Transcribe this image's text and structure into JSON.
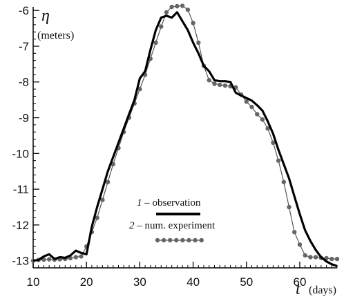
{
  "chart_data": {
    "type": "line",
    "title": "",
    "ylabel": "η",
    "ylabel_unit": "(meters)",
    "xlabel": "t",
    "xlabel_unit": "(days)",
    "xlim": [
      10,
      67
    ],
    "ylim": [
      -13.2,
      -5.9
    ],
    "x_ticks": [
      10,
      20,
      30,
      40,
      50,
      60
    ],
    "y_ticks": [
      -6,
      -7,
      -8,
      -9,
      -10,
      -11,
      -12,
      -13
    ],
    "x_tick_labels": [
      "10",
      "20",
      "30",
      "40",
      "50",
      "60"
    ],
    "y_tick_labels": [
      "-6",
      "-7",
      "-8",
      "-9",
      "-10",
      "-11",
      "-12",
      "-13"
    ],
    "legend_position": "center-bottom",
    "series": [
      {
        "name": "observation",
        "number": "1",
        "style": "thick-line",
        "color": "#000000",
        "x": [
          10,
          11,
          12,
          13,
          14,
          15,
          16,
          17,
          18,
          19,
          20,
          21,
          22,
          23,
          24,
          25,
          26,
          27,
          28,
          29,
          30,
          31,
          32,
          33,
          34,
          35,
          36,
          37,
          38,
          39,
          40,
          41,
          42,
          43,
          44,
          45,
          46,
          47,
          48,
          49,
          50,
          51,
          52,
          53,
          54,
          55,
          56,
          57,
          58,
          59,
          60,
          61,
          62,
          63,
          64,
          65,
          66,
          67
        ],
        "values": [
          -13.0,
          -12.98,
          -12.88,
          -12.82,
          -12.95,
          -12.9,
          -12.92,
          -12.85,
          -12.72,
          -12.78,
          -12.82,
          -12.05,
          -11.5,
          -11.0,
          -10.5,
          -10.1,
          -9.7,
          -9.3,
          -8.9,
          -8.5,
          -7.9,
          -7.7,
          -7.1,
          -6.55,
          -6.2,
          -6.15,
          -6.2,
          -6.05,
          -6.3,
          -6.55,
          -6.9,
          -7.2,
          -7.55,
          -7.7,
          -7.95,
          -7.98,
          -7.98,
          -8.0,
          -8.3,
          -8.38,
          -8.45,
          -8.52,
          -8.65,
          -8.8,
          -9.1,
          -9.45,
          -9.9,
          -10.3,
          -10.7,
          -11.2,
          -11.7,
          -12.15,
          -12.45,
          -12.7,
          -12.9,
          -13.02,
          -13.1,
          -13.15
        ]
      },
      {
        "name": "num. experiment",
        "number": "2",
        "style": "thin-line-dots",
        "color": "#666666",
        "x": [
          10,
          11,
          12,
          13,
          14,
          15,
          16,
          17,
          18,
          19,
          20,
          21,
          22,
          23,
          24,
          25,
          26,
          27,
          28,
          29,
          30,
          31,
          32,
          33,
          34,
          35,
          36,
          37,
          38,
          39,
          40,
          41,
          42,
          43,
          44,
          45,
          46,
          47,
          48,
          49,
          50,
          51,
          52,
          53,
          54,
          55,
          56,
          57,
          58,
          59,
          60,
          61,
          62,
          63,
          64,
          65,
          66,
          67
        ],
        "values": [
          -13.0,
          -12.98,
          -12.97,
          -12.96,
          -12.97,
          -12.96,
          -12.95,
          -12.93,
          -12.9,
          -12.88,
          -12.6,
          -12.2,
          -11.8,
          -11.3,
          -10.8,
          -10.3,
          -9.85,
          -9.4,
          -9.0,
          -8.6,
          -8.2,
          -7.8,
          -7.35,
          -6.9,
          -6.45,
          -6.05,
          -5.9,
          -5.88,
          -5.87,
          -5.98,
          -6.35,
          -6.9,
          -7.55,
          -7.95,
          -8.05,
          -8.08,
          -8.1,
          -8.12,
          -8.15,
          -8.35,
          -8.55,
          -8.7,
          -8.9,
          -9.05,
          -9.3,
          -9.7,
          -10.2,
          -10.8,
          -11.5,
          -12.2,
          -12.55,
          -12.85,
          -12.9,
          -12.9,
          -12.92,
          -12.93,
          -12.95,
          -12.95
        ]
      }
    ]
  }
}
